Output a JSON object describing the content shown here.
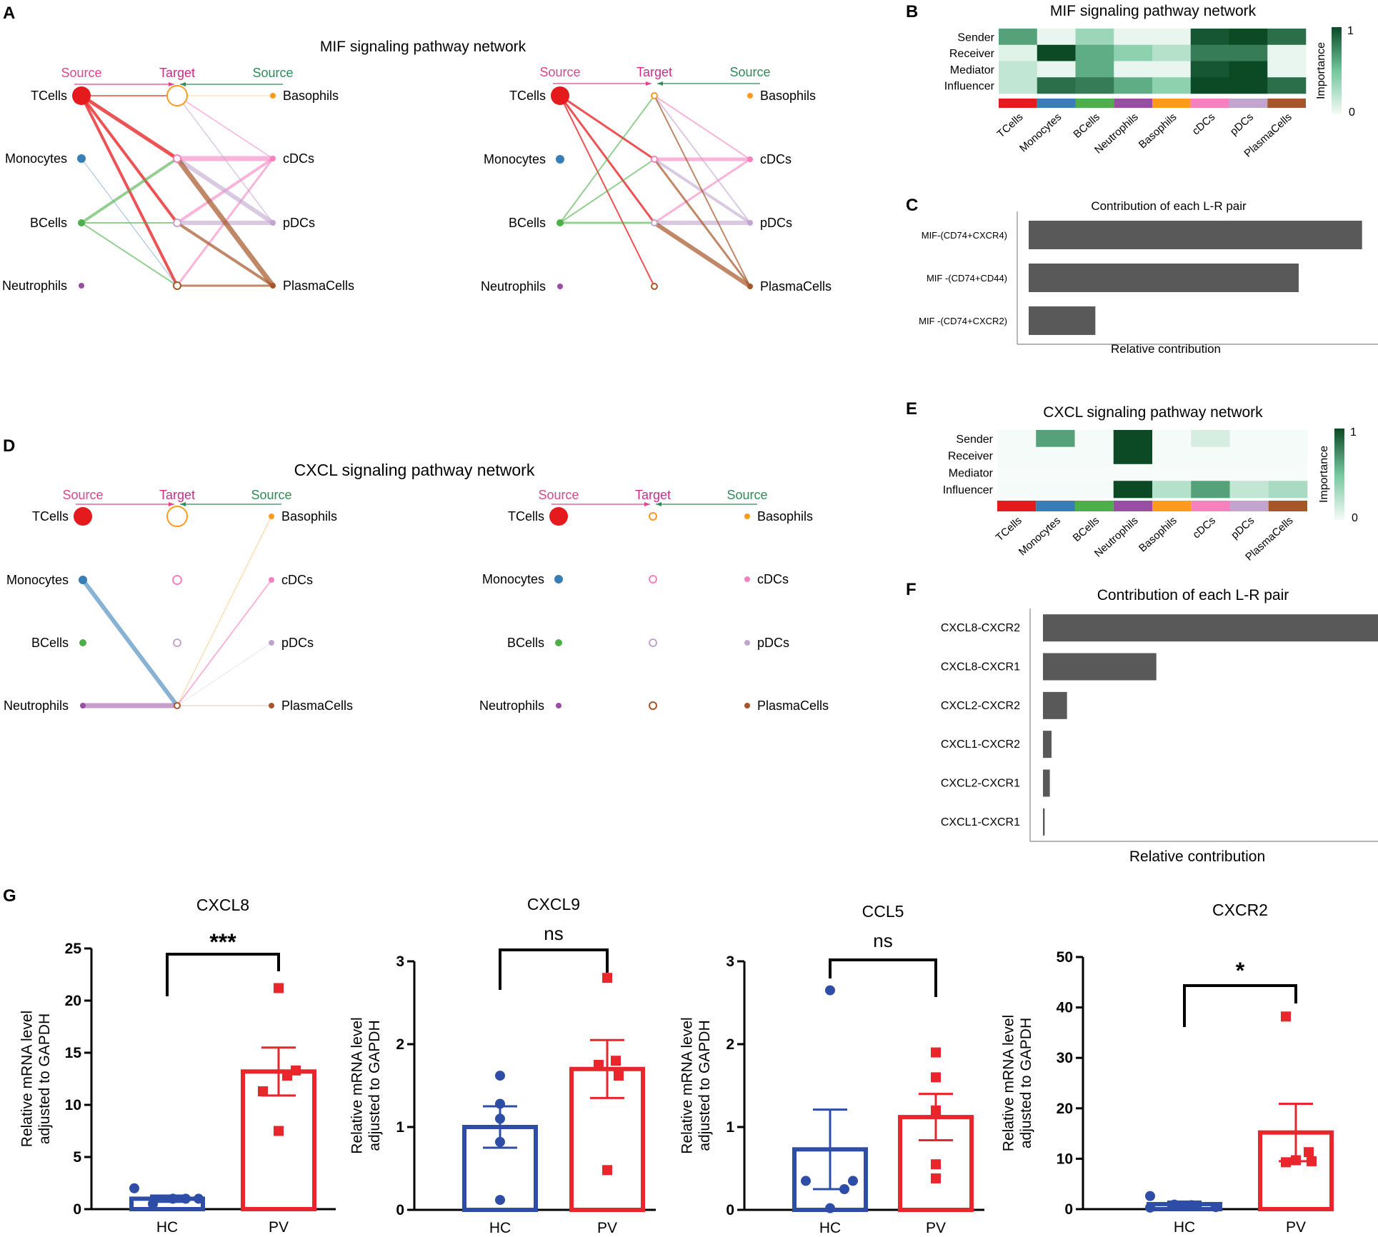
{
  "panel_labels": {
    "A": "A",
    "B": "B",
    "C": "C",
    "D": "D",
    "E": "E",
    "F": "F",
    "G": "G"
  },
  "colors": {
    "cell_types": [
      "#e41a1c",
      "#377eb8",
      "#4daf4a",
      "#984ea3",
      "#ff9a1f",
      "#f781bf",
      "#c2a5cf",
      "#a65628"
    ],
    "heat_low": "#f5fbf8",
    "heat_mid": "#74c69d",
    "heat_high": "#0c4a26",
    "source_label": "#e0458b",
    "target_label": "#cf2c8a",
    "source_right_label": "#2e8b57",
    "bar_gray": "#595959",
    "hc": "#2e4da7",
    "pv": "#e8262b"
  },
  "cell_types": [
    "TCells",
    "Monocytes",
    "BCells",
    "Neutrophils",
    "Basophils",
    "cDCs",
    "pDCs",
    "PlasmaCells"
  ],
  "mif_network": {
    "title": "MIF signaling pathway network",
    "source_label": "Source",
    "target_label": "Target",
    "source_right_label": "Source",
    "left_nodes": [
      "TCells",
      "Monocytes",
      "BCells",
      "Neutrophils"
    ],
    "right_nodes": [
      "Basophils",
      "cDCs",
      "pDCs",
      "PlasmaCells"
    ]
  },
  "cxcl_network": {
    "title": "CXCL signaling pathway network",
    "source_label": "Source",
    "target_label": "Target",
    "source_right_label": "Source",
    "left_nodes": [
      "TCells",
      "Monocytes",
      "BCells",
      "Neutrophils"
    ],
    "right_nodes": [
      "Basophils",
      "cDCs",
      "pDCs",
      "PlasmaCells"
    ]
  },
  "chart_data": [
    {
      "id": "B",
      "type": "heatmap",
      "title": "MIF signaling pathway network",
      "rows": [
        "Sender",
        "Receiver",
        "Mediator",
        "Influencer"
      ],
      "columns": [
        "TCells",
        "Monocytes",
        "BCells",
        "Neutrophils",
        "Basophils",
        "cDCs",
        "pDCs",
        "PlasmaCells"
      ],
      "values": [
        [
          0.65,
          0.05,
          0.35,
          0.05,
          0.05,
          0.95,
          1.0,
          0.85
        ],
        [
          0.08,
          1.0,
          0.6,
          0.4,
          0.25,
          0.8,
          0.8,
          0.05
        ],
        [
          0.2,
          0.05,
          0.6,
          0.05,
          0.05,
          0.95,
          1.0,
          0.05
        ],
        [
          0.2,
          0.85,
          0.8,
          0.6,
          0.4,
          1.0,
          1.0,
          0.85
        ]
      ],
      "colorbar_label": "Importance",
      "colorbar_max": "1",
      "colorbar_min": "0"
    },
    {
      "id": "C",
      "type": "bar",
      "orientation": "horizontal",
      "title": "Contribution of each L-R pair",
      "categories": [
        "MIF-(CD74+CXCR4)",
        "MIF -(CD74+CD44)",
        "MIF -(CD74+CXCR2)"
      ],
      "values": [
        1.0,
        0.81,
        0.2
      ],
      "xlabel": "Relative contribution",
      "xlim": [
        0,
        1.05
      ]
    },
    {
      "id": "E",
      "type": "heatmap",
      "title": "CXCL signaling pathway network",
      "rows": [
        "Sender",
        "Receiver",
        "Mediator",
        "Influencer"
      ],
      "columns": [
        "TCells",
        "Monocytes",
        "BCells",
        "Neutrophils",
        "Basophils",
        "cDCs",
        "pDCs",
        "PlasmaCells"
      ],
      "values": [
        [
          0.0,
          0.65,
          0.0,
          1.0,
          0.0,
          0.12,
          0.0,
          0.0
        ],
        [
          0.0,
          0.0,
          0.0,
          1.0,
          0.0,
          0.0,
          0.0,
          0.0
        ],
        [
          null,
          null,
          null,
          null,
          null,
          null,
          null,
          null
        ],
        [
          0.0,
          0.0,
          0.0,
          1.0,
          0.25,
          0.65,
          0.2,
          0.3
        ]
      ],
      "colorbar_label": "Importance",
      "colorbar_max": "1",
      "colorbar_min": "0"
    },
    {
      "id": "F",
      "type": "bar",
      "orientation": "horizontal",
      "title": "Contribution of each L-R pair",
      "categories": [
        "CXCL8-CXCR2",
        "CXCL8-CXCR1",
        "CXCL2-CXCR2",
        "CXCL1-CXCR2",
        "CXCL2-CXCR1",
        "CXCL1-CXCR1"
      ],
      "values": [
        1.0,
        0.33,
        0.07,
        0.025,
        0.02,
        0.005
      ],
      "xlabel": "Relative contribution",
      "xlim": [
        0,
        1.05
      ]
    },
    {
      "id": "G1",
      "type": "bar",
      "title": "CXCL8",
      "categories": [
        "HC",
        "PV"
      ],
      "values": [
        1.0,
        13.2
      ],
      "sem": [
        0.3,
        2.3
      ],
      "points": [
        [
          2.0,
          0.5,
          1.0,
          1.0,
          1.0
        ],
        [
          21.2,
          12.8,
          13.3,
          11.3,
          7.5
        ]
      ],
      "significance": "***",
      "ylabel": "Relative mRNA level adjusted to GAPDH",
      "ylim": [
        0,
        25
      ],
      "yticks": [
        0,
        5,
        10,
        15,
        20,
        25
      ]
    },
    {
      "id": "G2",
      "type": "bar",
      "title": "CXCL9",
      "categories": [
        "HC",
        "PV"
      ],
      "values": [
        1.0,
        1.7
      ],
      "sem": [
        0.25,
        0.35
      ],
      "points": [
        [
          1.62,
          1.28,
          1.1,
          0.82,
          0.12
        ],
        [
          2.8,
          1.8,
          1.75,
          1.62,
          0.48
        ]
      ],
      "significance": "ns",
      "ylabel": "Relative mRNA level adjusted to GAPDH",
      "ylim": [
        0,
        3
      ],
      "yticks": [
        0,
        1,
        2,
        3
      ]
    },
    {
      "id": "G3",
      "type": "bar",
      "title": "CCL5",
      "categories": [
        "HC",
        "PV"
      ],
      "values": [
        0.73,
        1.12
      ],
      "sem": [
        0.48,
        0.28
      ],
      "points": [
        [
          2.65,
          0.35,
          0.35,
          0.25,
          0.02
        ],
        [
          1.9,
          1.6,
          1.2,
          0.55,
          0.38
        ]
      ],
      "significance": "ns",
      "ylabel": "Relative mRNA level adjusted to GAPDH",
      "ylim": [
        0,
        3
      ],
      "yticks": [
        0,
        1,
        2,
        3
      ]
    },
    {
      "id": "G4",
      "type": "bar",
      "title": "CXCR2",
      "categories": [
        "HC",
        "PV"
      ],
      "values": [
        1.0,
        15.2
      ],
      "sem": [
        0.5,
        5.7
      ],
      "points": [
        [
          2.6,
          0.3,
          0.9,
          0.8,
          0.4
        ],
        [
          38.2,
          11.3,
          9.7,
          9.3,
          9.5
        ]
      ],
      "significance": "*",
      "ylabel": "Relative mRNA level adjusted to GAPDH",
      "ylim": [
        0,
        50
      ],
      "yticks": [
        0,
        10,
        20,
        30,
        40,
        50
      ]
    }
  ]
}
